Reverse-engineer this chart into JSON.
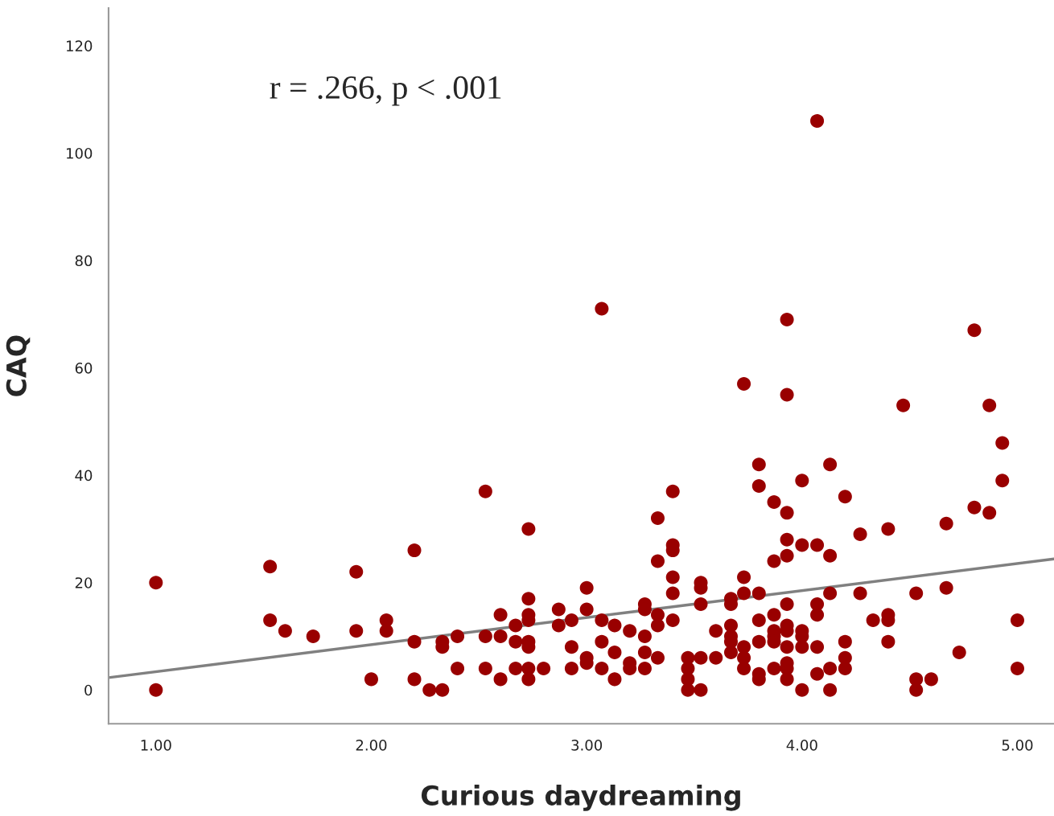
{
  "chart_data": {
    "type": "scatter",
    "xlabel": "Curious daydreaming",
    "ylabel": "CAQ",
    "annotations": [
      "r = .266, p < .001"
    ],
    "xlim": [
      0.78,
      5.17
    ],
    "ylim": [
      -6.3,
      127
    ],
    "xticks": [
      {
        "value": 1,
        "label": "1.00"
      },
      {
        "value": 2,
        "label": "2.00"
      },
      {
        "value": 3,
        "label": "3.00"
      },
      {
        "value": 4,
        "label": "4.00"
      },
      {
        "value": 5,
        "label": "5.00"
      }
    ],
    "yticks": [
      0,
      20,
      40,
      60,
      80,
      100,
      120
    ],
    "grid": false,
    "legend": false,
    "series": [
      {
        "marker": "circle",
        "color": "#990000",
        "x": [
          1.0,
          1.0,
          1.53,
          1.53,
          1.6,
          1.73,
          1.93,
          1.93,
          2.0,
          2.07,
          2.07,
          2.2,
          2.2,
          2.2,
          2.27,
          2.33,
          2.33,
          2.33,
          2.4,
          2.4,
          2.53,
          2.53,
          2.53,
          2.6,
          2.6,
          2.6,
          2.67,
          2.67,
          2.67,
          2.73,
          2.73,
          2.73,
          2.73,
          2.73,
          2.73,
          2.73,
          2.73,
          2.8,
          2.87,
          2.87,
          2.93,
          2.93,
          2.93,
          3.0,
          3.0,
          3.0,
          3.0,
          3.07,
          3.07,
          3.07,
          3.07,
          3.13,
          3.13,
          3.13,
          3.2,
          3.2,
          3.2,
          3.27,
          3.27,
          3.27,
          3.27,
          3.27,
          3.33,
          3.33,
          3.33,
          3.33,
          3.33,
          3.4,
          3.4,
          3.4,
          3.4,
          3.4,
          3.4,
          3.47,
          3.47,
          3.47,
          3.47,
          3.53,
          3.53,
          3.53,
          3.53,
          3.53,
          3.6,
          3.6,
          3.67,
          3.67,
          3.67,
          3.67,
          3.67,
          3.67,
          3.73,
          3.73,
          3.73,
          3.73,
          3.73,
          3.73,
          3.8,
          3.8,
          3.8,
          3.8,
          3.8,
          3.8,
          3.8,
          3.87,
          3.87,
          3.87,
          3.87,
          3.87,
          3.87,
          3.87,
          3.93,
          3.93,
          3.93,
          3.93,
          3.93,
          3.93,
          3.93,
          3.93,
          3.93,
          3.93,
          3.93,
          3.93,
          4.0,
          4.0,
          4.0,
          4.0,
          4.0,
          4.0,
          4.07,
          4.07,
          4.07,
          4.07,
          4.07,
          4.07,
          4.13,
          4.13,
          4.13,
          4.13,
          4.13,
          4.2,
          4.2,
          4.2,
          4.2,
          4.27,
          4.27,
          4.33,
          4.4,
          4.4,
          4.4,
          4.4,
          4.47,
          4.53,
          4.53,
          4.53,
          4.6,
          4.67,
          4.67,
          4.73,
          4.8,
          4.8,
          4.87,
          4.87,
          4.93,
          4.93,
          5.0,
          5.0
        ],
        "values": [
          20,
          0,
          23,
          13,
          11,
          10,
          22,
          11,
          2,
          13,
          11,
          26,
          9,
          2,
          0,
          9,
          8,
          0,
          10,
          4,
          37,
          10,
          4,
          14,
          10,
          2,
          12,
          9,
          4,
          30,
          17,
          14,
          13,
          9,
          8,
          4,
          2,
          4,
          15,
          12,
          13,
          8,
          4,
          19,
          15,
          6,
          5,
          71,
          13,
          9,
          4,
          12,
          7,
          2,
          11,
          5,
          4,
          16,
          15,
          10,
          7,
          4,
          32,
          24,
          14,
          12,
          6,
          37,
          27,
          26,
          21,
          18,
          13,
          6,
          4,
          2,
          0,
          20,
          19,
          16,
          6,
          0,
          11,
          6,
          17,
          16,
          12,
          10,
          9,
          7,
          57,
          21,
          18,
          8,
          6,
          4,
          42,
          38,
          18,
          13,
          9,
          3,
          2,
          35,
          24,
          14,
          11,
          10,
          9,
          4,
          69,
          55,
          33,
          28,
          25,
          16,
          12,
          11,
          8,
          5,
          4,
          2,
          39,
          27,
          11,
          10,
          8,
          0,
          106,
          27,
          16,
          14,
          8,
          3,
          42,
          25,
          18,
          4,
          0,
          36,
          9,
          6,
          4,
          29,
          18,
          13,
          30,
          14,
          13,
          9,
          53,
          18,
          2,
          0,
          2,
          31,
          19,
          7,
          67,
          34,
          53,
          33,
          46,
          39,
          13,
          4
        ]
      },
      {
        "type": "line",
        "marker": "none",
        "color": "#808080",
        "x": [
          0.78,
          5.17
        ],
        "values": [
          2.3,
          24.4
        ]
      }
    ]
  }
}
